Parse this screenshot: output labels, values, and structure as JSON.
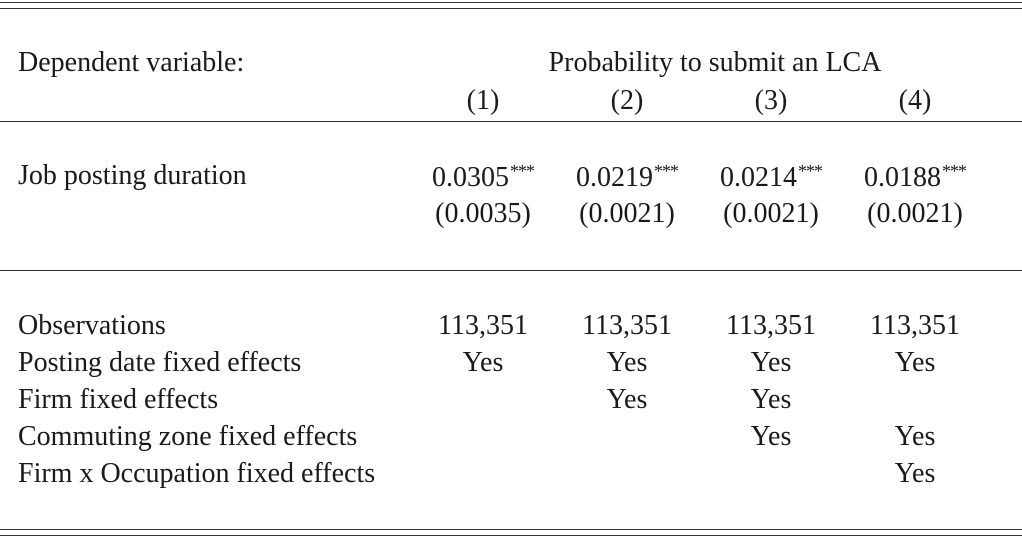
{
  "header": {
    "dep_var_label": "Dependent variable:",
    "dep_var_name": "Probability to submit an LCA",
    "columns": [
      "(1)",
      "(2)",
      "(3)",
      "(4)"
    ]
  },
  "coef_row": {
    "label": "Job posting duration",
    "estimates": [
      "0.0305",
      "0.0219",
      "0.0214",
      "0.0188"
    ],
    "stars": [
      "***",
      "***",
      "***",
      "***"
    ],
    "std_errors": [
      "(0.0035)",
      "(0.0021)",
      "(0.0021)",
      "(0.0021)"
    ]
  },
  "stats_rows": [
    {
      "label": "Observations",
      "values": [
        "113,351",
        "113,351",
        "113,351",
        "113,351"
      ]
    },
    {
      "label": "Posting date fixed effects",
      "values": [
        "Yes",
        "Yes",
        "Yes",
        "Yes"
      ]
    },
    {
      "label": "Firm fixed effects",
      "values": [
        "",
        "Yes",
        "Yes",
        ""
      ]
    },
    {
      "label": "Commuting zone fixed effects",
      "values": [
        "",
        "",
        "Yes",
        "Yes"
      ]
    },
    {
      "label": "Firm x Occupation fixed effects",
      "values": [
        "",
        "",
        "",
        "Yes"
      ]
    }
  ]
}
